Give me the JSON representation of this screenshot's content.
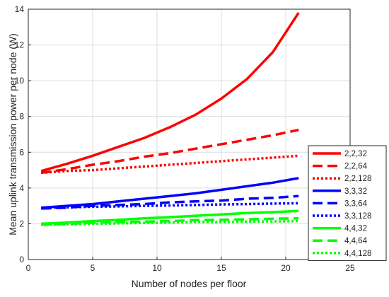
{
  "chart_data": {
    "type": "line",
    "xlabel": "Number of nodes per floor",
    "ylabel": "Mean uplink transmission power per node (W)",
    "xlim": [
      0,
      25
    ],
    "ylim": [
      0,
      14
    ],
    "xticks": [
      0,
      5,
      10,
      15,
      20,
      25
    ],
    "yticks": [
      0,
      2,
      4,
      6,
      8,
      10,
      12,
      14
    ],
    "grid": true,
    "legend_position": "lower-right",
    "x": [
      1,
      3,
      5,
      7,
      9,
      11,
      13,
      15,
      17,
      19,
      21
    ],
    "series": [
      {
        "name": "2,2,32",
        "color": "#ff0000",
        "dash": "solid",
        "values": [
          4.95,
          5.35,
          5.8,
          6.3,
          6.8,
          7.4,
          8.1,
          9.0,
          10.1,
          11.6,
          13.8
        ]
      },
      {
        "name": "2,2,64",
        "color": "#ff0000",
        "dash": "dashed",
        "values": [
          4.85,
          5.05,
          5.3,
          5.5,
          5.75,
          5.95,
          6.2,
          6.45,
          6.7,
          6.95,
          7.25
        ]
      },
      {
        "name": "2,2,128",
        "color": "#ff0000",
        "dash": "dotted",
        "values": [
          4.85,
          4.95,
          5.0,
          5.1,
          5.2,
          5.3,
          5.4,
          5.5,
          5.6,
          5.7,
          5.8
        ]
      },
      {
        "name": "3,3,32",
        "color": "#0000ff",
        "dash": "solid",
        "values": [
          2.9,
          3.0,
          3.1,
          3.25,
          3.4,
          3.55,
          3.7,
          3.9,
          4.1,
          4.3,
          4.55
        ]
      },
      {
        "name": "3,3,64",
        "color": "#0000ff",
        "dash": "dashed",
        "values": [
          2.85,
          2.9,
          3.0,
          3.05,
          3.1,
          3.2,
          3.25,
          3.3,
          3.4,
          3.45,
          3.55
        ]
      },
      {
        "name": "3,3,128",
        "color": "#0000ff",
        "dash": "dotted",
        "values": [
          2.9,
          2.92,
          2.95,
          2.97,
          3.0,
          3.02,
          3.05,
          3.08,
          3.1,
          3.13,
          3.15
        ]
      },
      {
        "name": "4,4,32",
        "color": "#00ff00",
        "dash": "solid",
        "values": [
          2.0,
          2.07,
          2.15,
          2.22,
          2.3,
          2.37,
          2.45,
          2.52,
          2.6,
          2.65,
          2.72
        ]
      },
      {
        "name": "4,4,64",
        "color": "#00ff00",
        "dash": "dashed",
        "values": [
          1.95,
          2.0,
          2.05,
          2.1,
          2.12,
          2.15,
          2.2,
          2.22,
          2.25,
          2.28,
          2.3
        ]
      },
      {
        "name": "4,4,128",
        "color": "#00ff00",
        "dash": "dotted",
        "values": [
          1.95,
          1.97,
          2.0,
          2.02,
          2.05,
          2.07,
          2.1,
          2.1,
          2.12,
          2.13,
          2.15
        ]
      }
    ]
  }
}
